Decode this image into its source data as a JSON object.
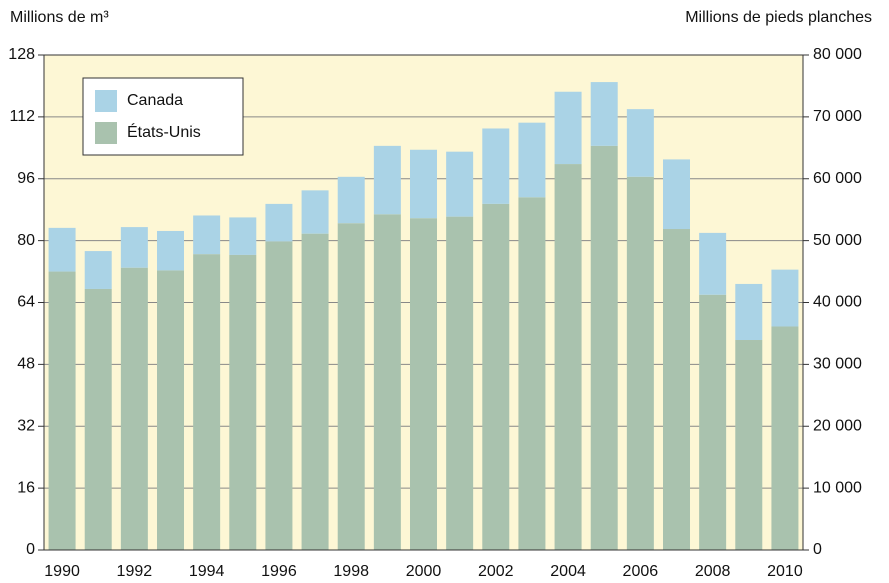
{
  "chart_data": {
    "type": "stacked-bar",
    "y_label": "Millions de m³",
    "y2_label": "Millions de pieds planches",
    "categories": [
      "1990",
      null,
      "1992",
      null,
      "1994",
      null,
      "1996",
      null,
      "1998",
      null,
      "2000",
      null,
      "2002",
      null,
      "2004",
      null,
      "2006",
      null,
      "2008",
      null,
      "2010"
    ],
    "series": [
      {
        "name": "États-Unis",
        "color": "#a9c2ae",
        "values": [
          72,
          67.5,
          73,
          72.3,
          76.5,
          76.3,
          79.8,
          81.8,
          84.5,
          86.8,
          85.8,
          86.2,
          89.5,
          91.2,
          99.8,
          104.5,
          96.5,
          83,
          66,
          54.3,
          57.8
        ]
      },
      {
        "name": "Canada",
        "color": "#aad3e6",
        "values": [
          11.3,
          9.8,
          10.5,
          10.2,
          10,
          9.7,
          9.7,
          11.2,
          12,
          17.7,
          17.7,
          16.8,
          19.5,
          19.3,
          18.7,
          16.5,
          17.5,
          18,
          16,
          14.5,
          14.7
        ]
      }
    ],
    "ylim": [
      0,
      128
    ],
    "yticks": [
      0,
      16,
      32,
      48,
      64,
      80,
      96,
      112,
      128
    ],
    "y2lim": [
      0,
      80000
    ],
    "y2ticks": [
      0,
      {
        "value": 10000,
        "label": "10 000"
      },
      {
        "value": 20000,
        "label": "20 000"
      },
      {
        "value": 30000,
        "label": "30 000"
      },
      {
        "value": 40000,
        "label": "40 000"
      },
      {
        "value": 50000,
        "label": "50 000"
      },
      {
        "value": 60000,
        "label": "60 000"
      },
      {
        "value": 70000,
        "label": "70 000"
      },
      {
        "value": 80000,
        "label": "80 000"
      }
    ],
    "grid": true,
    "legend": "top-left",
    "background": "#fdf7d5"
  }
}
